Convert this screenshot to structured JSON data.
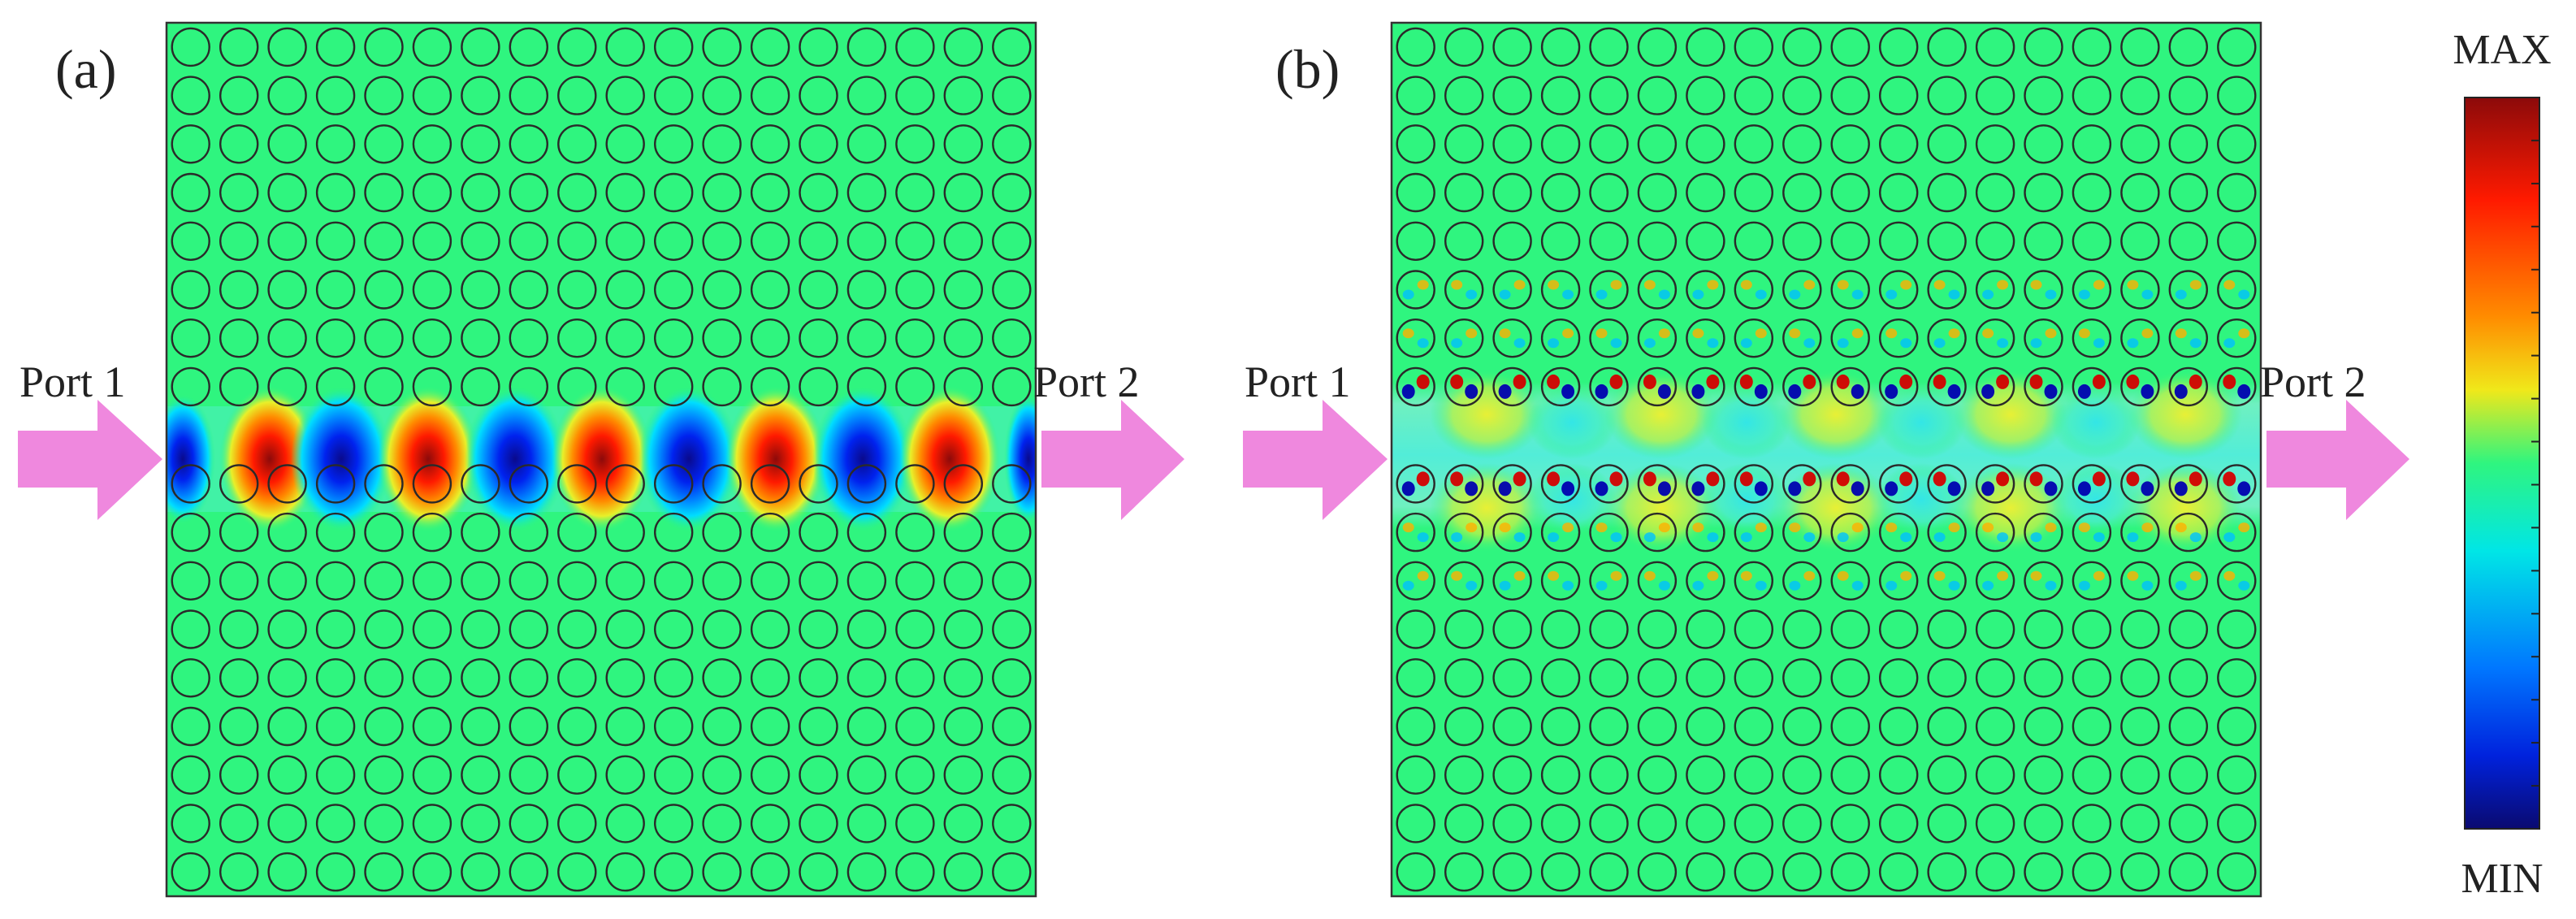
{
  "panels": [
    {
      "id": "a",
      "label": "(a)",
      "port_in": "Port 1",
      "port_out": "Port 2"
    },
    {
      "id": "b",
      "label": "(b)",
      "port_in": "Port 1",
      "port_out": "Port 2"
    }
  ],
  "colorbar": {
    "max_label": "MAX",
    "min_label": "MIN"
  },
  "lattice": {
    "rows": 18,
    "columns": 18,
    "defect_row_index": 8
  },
  "colors": {
    "background_field": "#2FF57F",
    "rod_outline": "#2a2a2a",
    "arrow": "#EE82DC",
    "scale": [
      "#0A0A8C",
      "#0033FF",
      "#00C8FF",
      "#2FF57F",
      "#D8F02A",
      "#FF8C00",
      "#FF1A00",
      "#8C0A0A"
    ]
  }
}
